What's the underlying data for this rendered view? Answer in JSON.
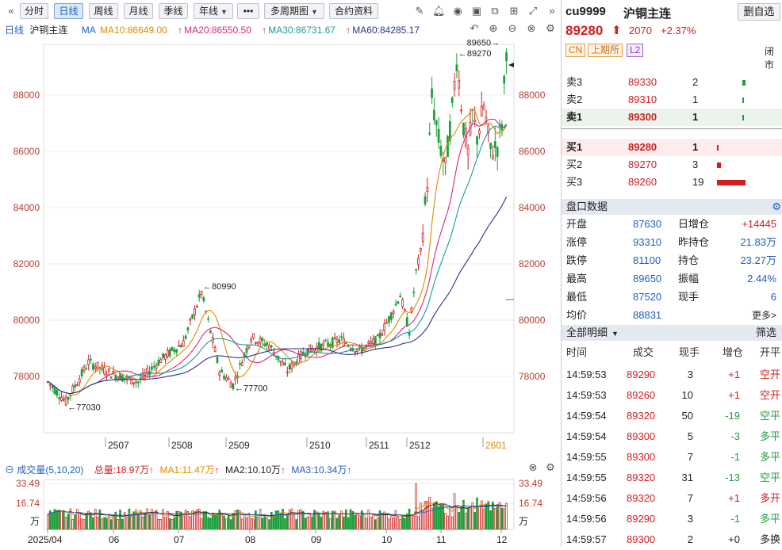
{
  "toolbar": {
    "periods": [
      "分时",
      "日线",
      "周线",
      "月线",
      "季线",
      "年线"
    ],
    "active": "日线",
    "more": "•••",
    "multi": "多周期图",
    "contract": "合约资料"
  },
  "ma_bar": {
    "period": "日线",
    "name": "沪铜主连",
    "ma_label": "MA",
    "ma10": "MA10:86649.00",
    "ma20": "MA20:86550.50",
    "ma30": "MA30:86731.67",
    "ma60": "MA60:84285.17",
    "colors": {
      "ma10": "#e08a00",
      "ma20": "#d4287f",
      "ma30": "#1b9a9a",
      "ma60": "#27348b"
    }
  },
  "chart_data": {
    "type": "candlestick",
    "y_ticks": [
      "88000",
      "86000",
      "84000",
      "82000",
      "80000",
      "78000"
    ],
    "ylim": [
      76000,
      89800
    ],
    "months": [
      "2507",
      "2508",
      "2509",
      "2510",
      "2511",
      "2512",
      "2601"
    ],
    "annotations": [
      {
        "label": "80990",
        "value": 80990
      },
      {
        "label": "77700",
        "value": 77700
      },
      {
        "label": "77030",
        "value": 77030
      },
      {
        "label": "89270",
        "value": 89270
      },
      {
        "label": "89650",
        "value": 89650
      }
    ]
  },
  "volume": {
    "title": "成交量(5,10,20)",
    "total": "总量:18.97万",
    "ma1": "MA1:11.47万",
    "ma2": "MA2:10.10万",
    "ma3": "MA3:10.34万",
    "ticks": [
      "33.49",
      "16.74"
    ],
    "unit": "万",
    "x_labels": [
      "2025/04",
      "06",
      "07",
      "08",
      "09",
      "10",
      "11",
      "12"
    ]
  },
  "quote": {
    "code": "cu9999",
    "name": "沪铜主连",
    "add_btn": "删自选",
    "price": "89280",
    "change": "2070",
    "pct": "+2.37%",
    "tags": [
      "CN",
      "上期所",
      "L2"
    ],
    "status": "闭市"
  },
  "orderbook": {
    "sells": [
      {
        "label": "卖3",
        "price": "89330",
        "qty": "2",
        "bar": 0.1
      },
      {
        "label": "卖2",
        "price": "89310",
        "qty": "1",
        "bar": 0.05
      },
      {
        "label": "卖1",
        "price": "89300",
        "qty": "1",
        "bar": 0.05
      }
    ],
    "buys": [
      {
        "label": "买1",
        "price": "89280",
        "qty": "1",
        "bar": 0.05
      },
      {
        "label": "买2",
        "price": "89270",
        "qty": "3",
        "bar": 0.15
      },
      {
        "label": "买3",
        "price": "89260",
        "qty": "19",
        "bar": 1.0
      }
    ]
  },
  "stats": {
    "title": "盘口数据",
    "rows": [
      {
        "k1": "开盘",
        "v1": "87630",
        "k2": "日增仓",
        "v2": "+14445"
      },
      {
        "k1": "涨停",
        "v1": "93310",
        "k2": "昨持仓",
        "v2": "21.83万"
      },
      {
        "k1": "跌停",
        "v1": "81100",
        "k2": "持仓",
        "v2": "23.27万"
      },
      {
        "k1": "最高",
        "v1": "89650",
        "k2": "振幅",
        "v2": "2.44%"
      },
      {
        "k1": "最低",
        "v1": "87520",
        "k2": "现手",
        "v2": "6"
      },
      {
        "k1": "均价",
        "v1": "88831",
        "k2": "",
        "v2": "更多>"
      }
    ]
  },
  "ticks": {
    "title": "全部明细",
    "filter": "筛选",
    "headers": [
      "时间",
      "成交",
      "现手",
      "增仓",
      "开平"
    ],
    "rows": [
      {
        "t": "14:59:53",
        "p": "89290",
        "q": "3",
        "d": "+1",
        "k": "空开"
      },
      {
        "t": "14:59:53",
        "p": "89260",
        "q": "10",
        "d": "+1",
        "k": "空开"
      },
      {
        "t": "14:59:54",
        "p": "89320",
        "q": "50",
        "d": "-19",
        "k": "空平"
      },
      {
        "t": "14:59:54",
        "p": "89300",
        "q": "5",
        "d": "-3",
        "k": "多平"
      },
      {
        "t": "14:59:55",
        "p": "89300",
        "q": "7",
        "d": "-1",
        "k": "多平"
      },
      {
        "t": "14:59:55",
        "p": "89320",
        "q": "31",
        "d": "-13",
        "k": "空平"
      },
      {
        "t": "14:59:56",
        "p": "89320",
        "q": "7",
        "d": "+1",
        "k": "多开"
      },
      {
        "t": "14:59:56",
        "p": "89290",
        "q": "3",
        "d": "-1",
        "k": "多平"
      },
      {
        "t": "14:59:57",
        "p": "89300",
        "q": "2",
        "d": "+0",
        "k": "多换"
      }
    ]
  }
}
